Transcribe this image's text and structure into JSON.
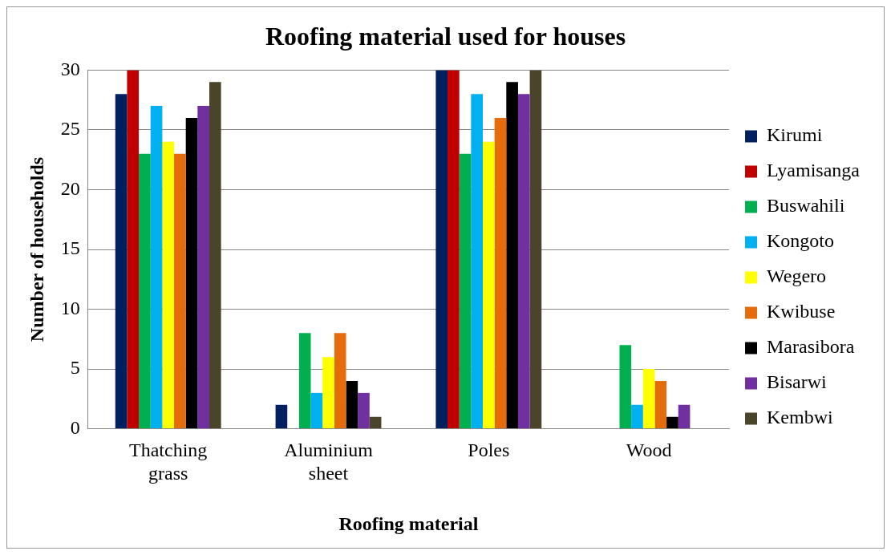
{
  "chart_data": {
    "type": "bar",
    "title": "Roofing material used for houses",
    "xlabel": "Roofing material",
    "ylabel": "Number of households",
    "categories": [
      "Thatching grass",
      "Aluminium sheet",
      "Poles",
      "Wood"
    ],
    "series": [
      {
        "name": "Kirumi",
        "color": "#002060",
        "values": [
          28,
          2,
          30,
          0
        ]
      },
      {
        "name": "Lyamisanga",
        "color": "#c00000",
        "values": [
          30,
          0,
          30,
          0
        ]
      },
      {
        "name": "Buswahili",
        "color": "#00b050",
        "values": [
          23,
          8,
          23,
          7
        ]
      },
      {
        "name": "Kongoto",
        "color": "#00b0f0",
        "values": [
          27,
          3,
          28,
          2
        ]
      },
      {
        "name": "Wegero",
        "color": "#ffff00",
        "values": [
          24,
          6,
          24,
          5
        ]
      },
      {
        "name": "Kwibuse",
        "color": "#e46c0a",
        "values": [
          23,
          8,
          26,
          4
        ]
      },
      {
        "name": "Marasibora",
        "color": "#000000",
        "values": [
          26,
          4,
          29,
          1
        ]
      },
      {
        "name": "Bisarwi",
        "color": "#7030a0",
        "values": [
          27,
          3,
          28,
          2
        ]
      },
      {
        "name": "Kembwi",
        "color": "#4a452a",
        "values": [
          29,
          1,
          30,
          0
        ]
      }
    ],
    "ylim": [
      0,
      30
    ],
    "yticks": [
      0,
      5,
      10,
      15,
      20,
      25,
      30
    ],
    "grid": "y",
    "legend": "right"
  }
}
